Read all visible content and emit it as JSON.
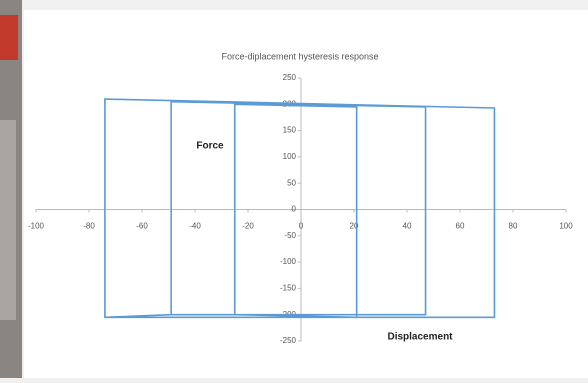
{
  "chart_data": {
    "type": "line",
    "title": "Force-diplacement hysteresis response",
    "y_label": "Force",
    "x_label": "Displacement",
    "x": [
      -25,
      -25,
      21,
      21,
      -25,
      -49,
      -49,
      47,
      47,
      -49,
      -74,
      -74,
      73,
      73,
      -74
    ],
    "values": [
      -200,
      200,
      195,
      -205,
      -200,
      -200,
      205,
      195,
      -200,
      -200,
      -205,
      210,
      193,
      -205,
      -205
    ],
    "color": "#5b9bd5",
    "xlim": [
      -100,
      100
    ],
    "xticks": [
      -100,
      -80,
      -60,
      -40,
      -20,
      0,
      20,
      40,
      60,
      80,
      100
    ],
    "ylim": [
      -250,
      250
    ],
    "yticks": [
      250,
      200,
      150,
      100,
      50,
      0,
      -50,
      -100,
      -150,
      -200,
      -250
    ]
  }
}
